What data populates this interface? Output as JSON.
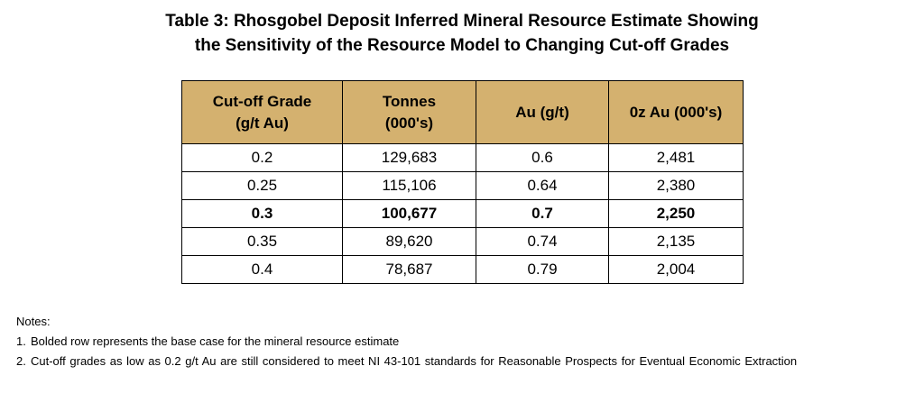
{
  "title": {
    "line1": "Table 3: Rhosgobel Deposit Inferred Mineral Resource Estimate Showing",
    "line2": "the Sensitivity of the Resource Model to Changing Cut-off Grades"
  },
  "table": {
    "headers": [
      {
        "line1": "Cut-off Grade",
        "line2": "(g/t Au)"
      },
      {
        "line1": "Tonnes",
        "line2": "(000's)"
      },
      {
        "line1": "Au (g/t)",
        "line2": ""
      },
      {
        "line1": "0z Au (000's)",
        "line2": ""
      }
    ],
    "rows": [
      {
        "cutoff": "0.2",
        "tonnes": "129,683",
        "au": "0.6",
        "oz": "2,481",
        "bold": false
      },
      {
        "cutoff": "0.25",
        "tonnes": "115,106",
        "au": "0.64",
        "oz": "2,380",
        "bold": false
      },
      {
        "cutoff": "0.3",
        "tonnes": "100,677",
        "au": "0.7",
        "oz": "2,250",
        "bold": true
      },
      {
        "cutoff": "0.35",
        "tonnes": "89,620",
        "au": "0.74",
        "oz": "2,135",
        "bold": false
      },
      {
        "cutoff": "0.4",
        "tonnes": "78,687",
        "au": "0.79",
        "oz": "2,004",
        "bold": false
      }
    ]
  },
  "notes": {
    "heading": "Notes:",
    "items": [
      {
        "num": "1.",
        "text": "Bolded row represents the base case for the mineral resource estimate"
      },
      {
        "num": "2.",
        "text": "Cut-off grades as low as 0.2 g/t Au are still considered to meet NI 43-101 standards for Reasonable Prospects for Eventual Economic Extraction"
      }
    ]
  },
  "colors": {
    "header_bg": "#d4b16f",
    "border": "#000000",
    "text": "#000000"
  }
}
